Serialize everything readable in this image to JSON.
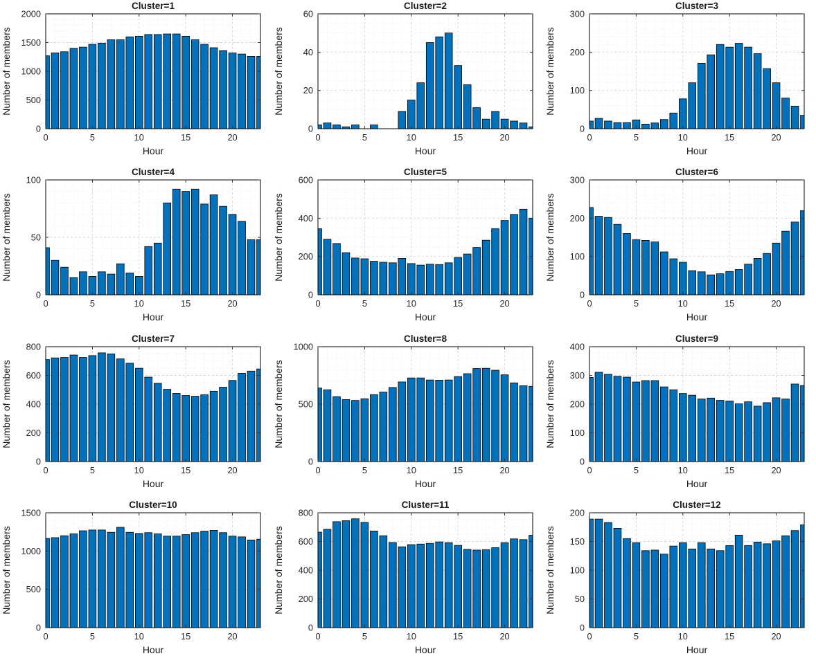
{
  "figure": {
    "background": "#ffffff",
    "bar_color": "#0072BD",
    "bar_edge_color": "#000000",
    "axis_color": "#000000",
    "major_grid_color": "#d6d6d6",
    "minor_grid_color": "#e7e7e7",
    "rows": 4,
    "cols": 3
  },
  "chart_data": [
    {
      "type": "bar",
      "title": "Cluster=1",
      "xlabel": "Hour",
      "ylabel": "Number of members",
      "x": [
        0,
        1,
        2,
        3,
        4,
        5,
        6,
        7,
        8,
        9,
        10,
        11,
        12,
        13,
        14,
        15,
        16,
        17,
        18,
        19,
        20,
        21,
        22,
        23
      ],
      "values": [
        1270,
        1320,
        1340,
        1400,
        1420,
        1470,
        1490,
        1550,
        1550,
        1600,
        1610,
        1640,
        1640,
        1650,
        1650,
        1610,
        1550,
        1470,
        1410,
        1360,
        1320,
        1300,
        1260,
        1260
      ],
      "xlim": [
        0,
        23
      ],
      "ylim": [
        0,
        2000
      ],
      "xticks": [
        0,
        5,
        10,
        15,
        20
      ],
      "yticks": [
        0,
        500,
        1000,
        1500,
        2000
      ],
      "y_minor_div": 5,
      "grid": "on"
    },
    {
      "type": "bar",
      "title": "Cluster=2",
      "xlabel": "Hour",
      "ylabel": "Number of members",
      "x": [
        0,
        1,
        2,
        3,
        4,
        5,
        6,
        7,
        8,
        9,
        10,
        11,
        12,
        13,
        14,
        15,
        16,
        17,
        18,
        19,
        20,
        21,
        22,
        23
      ],
      "values": [
        2,
        3,
        2,
        1,
        2,
        0,
        2,
        0,
        0,
        9,
        15,
        24,
        45,
        48,
        50,
        33,
        23,
        11,
        5,
        9,
        5,
        4,
        3,
        1
      ],
      "xlim": [
        0,
        23
      ],
      "ylim": [
        0,
        60
      ],
      "xticks": [
        0,
        5,
        10,
        15,
        20
      ],
      "yticks": [
        0,
        20,
        40,
        60
      ],
      "y_minor_div": 4,
      "grid": "on"
    },
    {
      "type": "bar",
      "title": "Cluster=3",
      "xlabel": "Hour",
      "ylabel": "Number of members",
      "x": [
        0,
        1,
        2,
        3,
        4,
        5,
        6,
        7,
        8,
        9,
        10,
        11,
        12,
        13,
        14,
        15,
        16,
        17,
        18,
        19,
        20,
        21,
        22,
        23
      ],
      "values": [
        20,
        27,
        20,
        16,
        16,
        23,
        12,
        15,
        24,
        41,
        78,
        120,
        171,
        193,
        220,
        213,
        223,
        213,
        196,
        157,
        120,
        80,
        59,
        35
      ],
      "xlim": [
        0,
        23
      ],
      "ylim": [
        0,
        300
      ],
      "xticks": [
        0,
        5,
        10,
        15,
        20
      ],
      "yticks": [
        0,
        100,
        200,
        300
      ],
      "y_minor_div": 5,
      "grid": "on"
    },
    {
      "type": "bar",
      "title": "Cluster=4",
      "xlabel": "Hour",
      "ylabel": "Number of members",
      "x": [
        0,
        1,
        2,
        3,
        4,
        5,
        6,
        7,
        8,
        9,
        10,
        11,
        12,
        13,
        14,
        15,
        16,
        17,
        18,
        19,
        20,
        21,
        22,
        23
      ],
      "values": [
        41,
        30,
        24,
        15,
        20,
        16,
        20,
        18,
        27,
        19,
        16,
        42,
        45,
        80,
        92,
        90,
        92,
        79,
        87,
        77,
        70,
        64,
        48,
        48
      ],
      "xlim": [
        0,
        23
      ],
      "ylim": [
        0,
        100
      ],
      "xticks": [
        0,
        5,
        10,
        15,
        20
      ],
      "yticks": [
        0,
        50,
        100
      ],
      "y_minor_div": 5,
      "grid": "on"
    },
    {
      "type": "bar",
      "title": "Cluster=5",
      "xlabel": "Hour",
      "ylabel": "Number of members",
      "x": [
        0,
        1,
        2,
        3,
        4,
        5,
        6,
        7,
        8,
        9,
        10,
        11,
        12,
        13,
        14,
        15,
        16,
        17,
        18,
        19,
        20,
        21,
        22,
        23
      ],
      "values": [
        345,
        290,
        268,
        220,
        192,
        188,
        175,
        170,
        167,
        190,
        163,
        155,
        160,
        158,
        167,
        195,
        213,
        247,
        285,
        345,
        388,
        420,
        447,
        400
      ],
      "xlim": [
        0,
        23
      ],
      "ylim": [
        0,
        600
      ],
      "xticks": [
        0,
        5,
        10,
        15,
        20
      ],
      "yticks": [
        0,
        200,
        400,
        600
      ],
      "y_minor_div": 4,
      "grid": "on"
    },
    {
      "type": "bar",
      "title": "Cluster=6",
      "xlabel": "Hour",
      "ylabel": "Number of members",
      "x": [
        0,
        1,
        2,
        3,
        4,
        5,
        6,
        7,
        8,
        9,
        10,
        11,
        12,
        13,
        14,
        15,
        16,
        17,
        18,
        19,
        20,
        21,
        22,
        23
      ],
      "values": [
        228,
        205,
        202,
        184,
        160,
        144,
        142,
        138,
        112,
        94,
        85,
        63,
        60,
        52,
        55,
        61,
        66,
        80,
        95,
        108,
        135,
        166,
        190,
        220
      ],
      "xlim": [
        0,
        23
      ],
      "ylim": [
        0,
        300
      ],
      "xticks": [
        0,
        5,
        10,
        15,
        20
      ],
      "yticks": [
        0,
        100,
        200,
        300
      ],
      "y_minor_div": 5,
      "grid": "on"
    },
    {
      "type": "bar",
      "title": "Cluster=7",
      "xlabel": "Hour",
      "ylabel": "Number of members",
      "x": [
        0,
        1,
        2,
        3,
        4,
        5,
        6,
        7,
        8,
        9,
        10,
        11,
        12,
        13,
        14,
        15,
        16,
        17,
        18,
        19,
        20,
        21,
        22,
        23
      ],
      "values": [
        710,
        722,
        725,
        742,
        725,
        738,
        757,
        750,
        715,
        685,
        650,
        588,
        545,
        503,
        475,
        460,
        455,
        465,
        490,
        518,
        565,
        615,
        630,
        645
      ],
      "xlim": [
        0,
        23
      ],
      "ylim": [
        0,
        800
      ],
      "xticks": [
        0,
        5,
        10,
        15,
        20
      ],
      "yticks": [
        0,
        200,
        400,
        600,
        800
      ],
      "y_minor_div": 4,
      "grid": "on"
    },
    {
      "type": "bar",
      "title": "Cluster=8",
      "xlabel": "Hour",
      "ylabel": "Number of members",
      "x": [
        0,
        1,
        2,
        3,
        4,
        5,
        6,
        7,
        8,
        9,
        10,
        11,
        12,
        13,
        14,
        15,
        16,
        17,
        18,
        19,
        20,
        21,
        22,
        23
      ],
      "values": [
        640,
        625,
        565,
        540,
        532,
        547,
        583,
        605,
        645,
        693,
        728,
        728,
        710,
        708,
        710,
        740,
        765,
        810,
        812,
        795,
        755,
        685,
        660,
        655
      ],
      "xlim": [
        0,
        23
      ],
      "ylim": [
        0,
        1000
      ],
      "xticks": [
        0,
        5,
        10,
        15,
        20
      ],
      "yticks": [
        0,
        500,
        1000
      ],
      "y_minor_div": 5,
      "grid": "on"
    },
    {
      "type": "bar",
      "title": "Cluster=9",
      "xlabel": "Hour",
      "ylabel": "Number of members",
      "x": [
        0,
        1,
        2,
        3,
        4,
        5,
        6,
        7,
        8,
        9,
        10,
        11,
        12,
        13,
        14,
        15,
        16,
        17,
        18,
        19,
        20,
        21,
        22,
        23
      ],
      "values": [
        293,
        311,
        304,
        297,
        294,
        277,
        282,
        282,
        260,
        250,
        237,
        231,
        218,
        221,
        213,
        211,
        201,
        208,
        193,
        205,
        222,
        218,
        270,
        265
      ],
      "xlim": [
        0,
        23
      ],
      "ylim": [
        0,
        400
      ],
      "xticks": [
        0,
        5,
        10,
        15,
        20
      ],
      "yticks": [
        0,
        100,
        200,
        300,
        400
      ],
      "y_minor_div": 5,
      "grid": "on"
    },
    {
      "type": "bar",
      "title": "Cluster=10",
      "xlabel": "Hour",
      "ylabel": "Number of members",
      "x": [
        0,
        1,
        2,
        3,
        4,
        5,
        6,
        7,
        8,
        9,
        10,
        11,
        12,
        13,
        14,
        15,
        16,
        17,
        18,
        19,
        20,
        21,
        22,
        23
      ],
      "values": [
        1165,
        1175,
        1200,
        1225,
        1265,
        1275,
        1275,
        1245,
        1310,
        1245,
        1230,
        1240,
        1225,
        1195,
        1195,
        1215,
        1240,
        1260,
        1270,
        1240,
        1195,
        1185,
        1145,
        1155
      ],
      "xlim": [
        0,
        23
      ],
      "ylim": [
        0,
        1500
      ],
      "xticks": [
        0,
        5,
        10,
        15,
        20
      ],
      "yticks": [
        0,
        500,
        1000,
        1500
      ],
      "y_minor_div": 5,
      "grid": "on"
    },
    {
      "type": "bar",
      "title": "Cluster=11",
      "xlabel": "Hour",
      "ylabel": "Number of members",
      "x": [
        0,
        1,
        2,
        3,
        4,
        5,
        6,
        7,
        8,
        9,
        10,
        11,
        12,
        13,
        14,
        15,
        16,
        17,
        18,
        19,
        20,
        21,
        22,
        23
      ],
      "values": [
        665,
        685,
        738,
        745,
        758,
        733,
        673,
        640,
        593,
        563,
        578,
        582,
        587,
        597,
        592,
        573,
        545,
        540,
        543,
        557,
        592,
        618,
        613,
        643
      ],
      "xlim": [
        0,
        23
      ],
      "ylim": [
        0,
        800
      ],
      "xticks": [
        0,
        5,
        10,
        15,
        20
      ],
      "yticks": [
        0,
        200,
        400,
        600,
        800
      ],
      "y_minor_div": 4,
      "grid": "on"
    },
    {
      "type": "bar",
      "title": "Cluster=12",
      "xlabel": "Hour",
      "ylabel": "Number of members",
      "x": [
        0,
        1,
        2,
        3,
        4,
        5,
        6,
        7,
        8,
        9,
        10,
        11,
        12,
        13,
        14,
        15,
        16,
        17,
        18,
        19,
        20,
        21,
        22,
        23
      ],
      "values": [
        189,
        189,
        183,
        173,
        155,
        148,
        134,
        135,
        128,
        142,
        148,
        137,
        148,
        137,
        134,
        143,
        161,
        143,
        149,
        146,
        151,
        160,
        169,
        179
      ],
      "xlim": [
        0,
        23
      ],
      "ylim": [
        0,
        200
      ],
      "xticks": [
        0,
        5,
        10,
        15,
        20
      ],
      "yticks": [
        0,
        50,
        100,
        150,
        200
      ],
      "y_minor_div": 5,
      "grid": "on"
    }
  ]
}
